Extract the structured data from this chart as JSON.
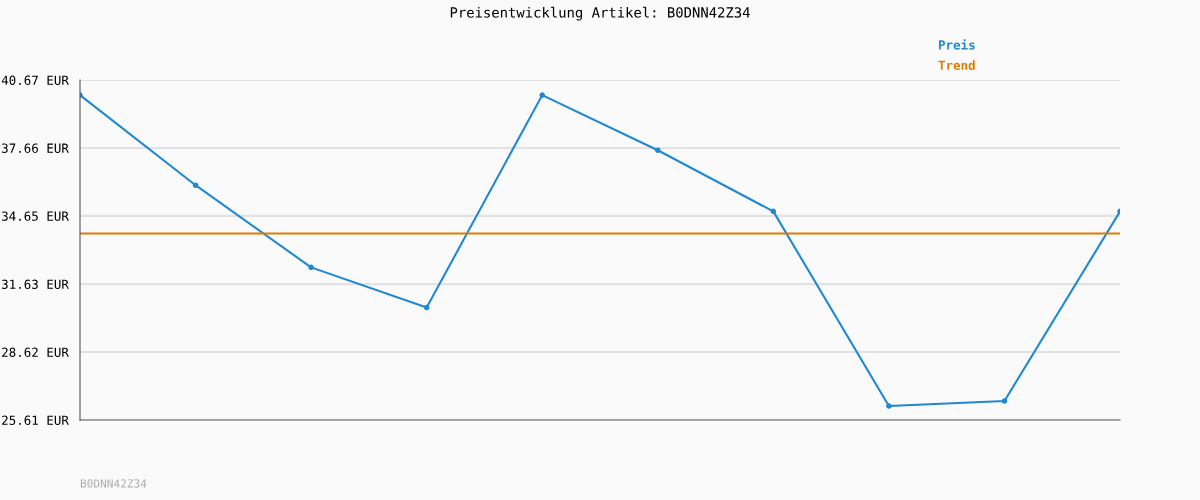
{
  "chart_data": {
    "type": "line",
    "title": "Preisentwicklung Artikel: B0DNN42Z34",
    "categories": [
      null,
      null,
      null,
      null,
      null,
      null,
      null,
      null,
      null,
      null
    ],
    "series": [
      {
        "name": "Preis",
        "color": "#1f88d2",
        "values": [
          40.0,
          36.01,
          32.37,
          30.59,
          40.0,
          37.56,
          34.85,
          26.23,
          26.45,
          34.85
        ],
        "marker": "circle"
      },
      {
        "name": "Trend",
        "color": "#e07b00",
        "values": [
          33.87,
          33.87,
          33.87,
          33.87,
          33.87,
          33.87,
          33.87,
          33.87,
          33.87,
          33.87
        ],
        "marker": "none"
      }
    ],
    "ylim": [
      25.61,
      40.67
    ],
    "yticks": [
      {
        "value": 25.61,
        "label": "25.61 EUR"
      },
      {
        "value": 28.62,
        "label": "28.62 EUR"
      },
      {
        "value": 31.63,
        "label": "31.63 EUR"
      },
      {
        "value": 34.65,
        "label": "34.65 EUR"
      },
      {
        "value": 37.66,
        "label": "37.66 EUR"
      },
      {
        "value": 40.67,
        "label": "40.67 EUR"
      }
    ],
    "grid": "y",
    "legend": "top right",
    "line_style": "solid",
    "annotations": [
      "B0DNN42Z34"
    ]
  }
}
